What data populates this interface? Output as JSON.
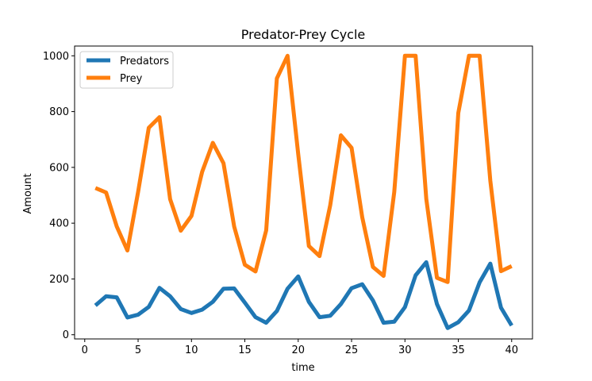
{
  "chart_data": {
    "type": "line",
    "title": "Predator-Prey Cycle",
    "xlabel": "time",
    "ylabel": "Amount",
    "xlim": [
      -0.95,
      41.95
    ],
    "ylim": [
      -15,
      1035
    ],
    "xticks": [
      0,
      5,
      10,
      15,
      20,
      25,
      30,
      35,
      40
    ],
    "yticks": [
      0,
      200,
      400,
      600,
      800,
      1000
    ],
    "grid": false,
    "legend_position": "top-left",
    "x": [
      1,
      2,
      3,
      4,
      5,
      6,
      7,
      8,
      9,
      10,
      11,
      12,
      13,
      14,
      15,
      16,
      17,
      18,
      19,
      20,
      21,
      22,
      23,
      24,
      25,
      26,
      27,
      28,
      29,
      30,
      31,
      32,
      33,
      34,
      35,
      36,
      37,
      38,
      39,
      40
    ],
    "series": [
      {
        "name": "Predators",
        "color": "#1f77b4",
        "values": [
          105,
          138,
          134,
          62,
          72,
          100,
          168,
          138,
          92,
          78,
          90,
          118,
          165,
          166,
          115,
          63,
          43,
          85,
          165,
          209,
          118,
          63,
          68,
          110,
          167,
          181,
          123,
          43,
          47,
          99,
          213,
          260,
          110,
          24,
          45,
          87,
          188,
          255,
          97,
          33
        ]
      },
      {
        "name": "Prey",
        "color": "#ff7f0e",
        "values": [
          526,
          510,
          388,
          302,
          512,
          742,
          780,
          486,
          373,
          426,
          584,
          688,
          615,
          388,
          251,
          227,
          374,
          919,
          1000,
          648,
          318,
          282,
          464,
          715,
          670,
          421,
          243,
          211,
          512,
          1000,
          1000,
          487,
          204,
          189,
          795,
          1000,
          1000,
          552,
          228,
          246
        ]
      }
    ]
  }
}
